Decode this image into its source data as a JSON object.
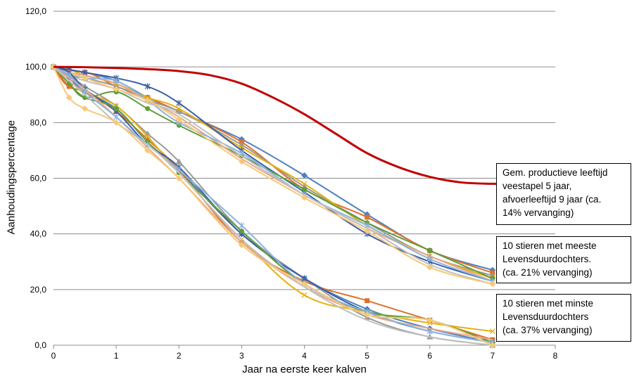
{
  "chart_data": {
    "type": "line",
    "title": "",
    "xlabel": "Jaar na eerste keer kalven",
    "ylabel": "Aanhoudingspercentage",
    "xlim": [
      0,
      8
    ],
    "ylim": [
      0,
      120
    ],
    "x_ticks": [
      "0",
      "1",
      "2",
      "3",
      "4",
      "5",
      "6",
      "7",
      "8"
    ],
    "y_ticks": [
      "0,0",
      "20,0",
      "40,0",
      "60,0",
      "80,0",
      "100,0",
      "120,0"
    ],
    "grid": "horizontal",
    "x": [
      0,
      0.25,
      0.5,
      1,
      1.5,
      2,
      3,
      4,
      5,
      6,
      7
    ],
    "reference": {
      "name": "Gem. productieve leeftijd veestapel 5 jaar, afvoerleeftijd 9 jaar (ca. 14% vervanging)",
      "color": "#C00000",
      "x": [
        0,
        0.5,
        1,
        1.5,
        2,
        2.5,
        3,
        3.5,
        4,
        4.5,
        5,
        5.5,
        6,
        6.5,
        7
      ],
      "values": [
        100,
        99.9,
        99.6,
        99.2,
        98.5,
        97,
        94,
        89,
        83,
        76,
        69,
        64,
        60.5,
        58.5,
        58
      ]
    },
    "groups": [
      {
        "name": "10 stieren met meeste Levensduurdochters. (ca. 21% vervanging)",
        "series": [
          {
            "color": "#4F81BD",
            "marker": "diamond",
            "values": [
              100,
              99,
              98,
              95,
              89,
              84,
              74,
              61,
              47,
              34,
              27
            ]
          },
          {
            "color": "#E0702A",
            "marker": "square",
            "values": [
              100,
              93,
              98,
              93,
              89,
              84,
              73,
              56,
              46,
              34,
              26
            ]
          },
          {
            "color": "#9A9A9A",
            "marker": "triangle",
            "values": [
              100,
              97,
              96,
              93,
              88,
              84,
              72,
              57,
              44,
              32,
              25
            ]
          },
          {
            "color": "#E8B00C",
            "marker": "x",
            "values": [
              100,
              99,
              97,
              94,
              89,
              85,
              71,
              58,
              43,
              32,
              24
            ]
          },
          {
            "color": "#3A5FA8",
            "marker": "star",
            "values": [
              100,
              99,
              98,
              96,
              93,
              87,
              70,
              55,
              40,
              30,
              23
            ]
          },
          {
            "color": "#5E9E3A",
            "marker": "circle",
            "values": [
              100,
              94,
              89,
              91,
              85,
              79,
              68,
              56,
              44,
              34,
              24
            ]
          },
          {
            "color": "#E8A88A",
            "marker": "none",
            "values": [
              100,
              98,
              97,
              94,
              88,
              82,
              67,
              54,
              42,
              32,
              23
            ]
          },
          {
            "color": "#8DB4E0",
            "marker": "star",
            "values": [
              100,
              98,
              96,
              95,
              88,
              80,
              69,
              54,
              43,
              31,
              23
            ]
          },
          {
            "color": "#C0C0C0",
            "marker": "none",
            "values": [
              100,
              97,
              95,
              92,
              87,
              83,
              68,
              54,
              42,
              29,
              22
            ]
          },
          {
            "color": "#F8C878",
            "marker": "diamond",
            "values": [
              100,
              98,
              96,
              92,
              88,
              81,
              66,
              53,
              41,
              28,
              22
            ]
          }
        ]
      },
      {
        "name": "10 stieren met minste Levensduurdochters (ca. 37% vervanging)",
        "series": [
          {
            "color": "#4F81BD",
            "marker": "diamond",
            "values": [
              100,
              96,
              91,
              85,
              73,
              63,
              40,
              24,
              13,
              6,
              1
            ]
          },
          {
            "color": "#E0702A",
            "marker": "square",
            "values": [
              100,
              93,
              91,
              84,
              74,
              63,
              37,
              23,
              16,
              9,
              2
            ]
          },
          {
            "color": "#9A9A9A",
            "marker": "triangle",
            "values": [
              100,
              97,
              93,
              86,
              76,
              66,
              41,
              24,
              10,
              3,
              0
            ]
          },
          {
            "color": "#E8B00C",
            "marker": "x",
            "values": [
              100,
              95,
              91,
              86,
              75,
              62,
              38,
              18,
              12,
              8,
              5
            ]
          },
          {
            "color": "#3A5FA8",
            "marker": "star",
            "values": [
              100,
              98,
              92,
              84,
              72,
              64,
              40,
              24,
              12,
              5,
              1
            ]
          },
          {
            "color": "#5E9E3A",
            "marker": "circle",
            "values": [
              100,
              94,
              89,
              85,
              73,
              62,
              41,
              22,
              12,
              9,
              1
            ]
          },
          {
            "color": "#E8A88A",
            "marker": "none",
            "values": [
              100,
              96,
              92,
              82,
              71,
              60,
              37,
              21,
              11,
              6,
              2
            ]
          },
          {
            "color": "#8DB4E0",
            "marker": "star",
            "values": [
              100,
              97,
              91,
              82,
              72,
              63,
              43,
              22,
              12,
              5,
              1
            ]
          },
          {
            "color": "#C0C0C0",
            "marker": "none",
            "values": [
              100,
              95,
              90,
              80,
              72,
              62,
              38,
              21,
              9,
              3,
              0
            ]
          },
          {
            "color": "#F8C878",
            "marker": "diamond",
            "values": [
              100,
              89,
              85,
              80,
              70,
              60,
              36,
              22,
              11,
              9,
              0
            ]
          }
        ]
      }
    ],
    "annotations": [
      "Gem. productieve leeftijd\nveestapel 5 jaar,\nafvoerleeftijd 9 jaar (ca.\n14% vervanging)",
      "10 stieren met meeste\nLevensduurdochters.\n(ca. 21% vervanging)",
      "10 stieren met minste\nLevensduurdochters\n(ca. 37% vervanging)"
    ]
  }
}
